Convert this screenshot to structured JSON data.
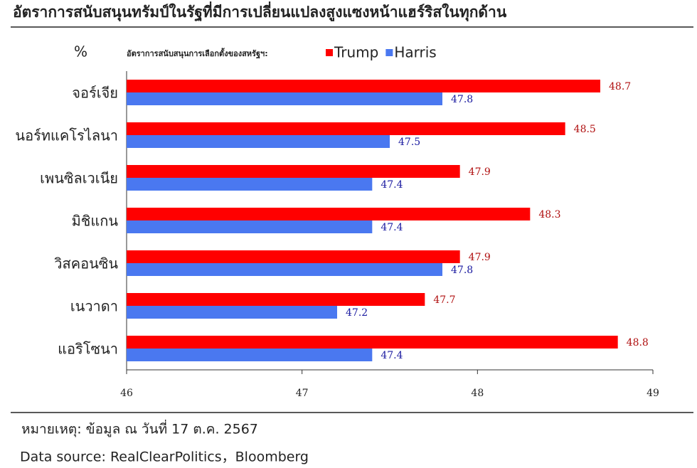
{
  "chart_data": {
    "type": "hbar",
    "title": "อัตราการสนับสนุนทรัมป์ในรัฐที่มีการเปลี่ยนแปลงสูงแซงหน้าแฮร์ริสในทุกด้าน",
    "unit_label": "%",
    "legend_title": "อัตราการสนับสนุนการเลือกตั้งของสหรัฐฯ:",
    "categories": [
      "จอร์เจีย",
      "นอร์ทแคโรไลนา",
      "เพนซิลเวเนีย",
      "มิชิแกน",
      "วิสคอนซิน",
      "เนวาดา",
      "แอริโซนา"
    ],
    "series": [
      {
        "name": "Trump",
        "color": "#ff0000",
        "values": [
          48.7,
          48.5,
          47.9,
          48.3,
          47.9,
          47.7,
          48.8
        ]
      },
      {
        "name": "Harris",
        "color": "#4a78f0",
        "values": [
          47.8,
          47.5,
          47.4,
          47.4,
          47.8,
          47.2,
          47.4
        ]
      }
    ],
    "xlim": [
      46,
      49
    ],
    "xticks": [
      46,
      47,
      48,
      49
    ],
    "grid": false,
    "notes": [
      "หมายเหตุ: ข้อมูล ณ วันที่ 17 ต.ค. 2567",
      "Data source: RealClearPolitics，Bloomberg"
    ]
  }
}
